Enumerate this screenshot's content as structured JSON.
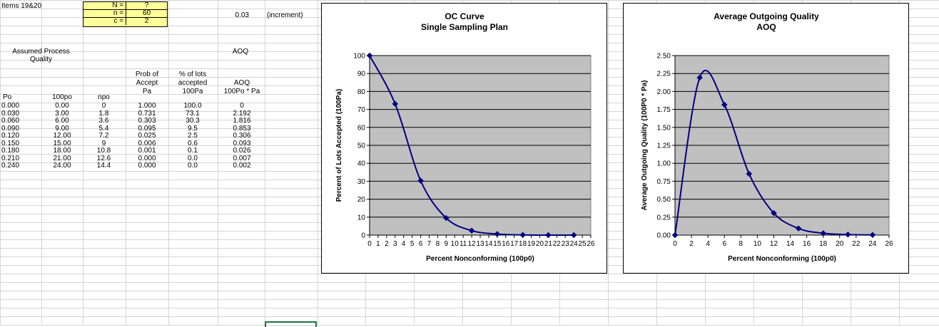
{
  "sheet": {
    "title_cell": "Items 19&20",
    "params": [
      {
        "label": "N =",
        "value": "?"
      },
      {
        "label": "n =",
        "value": "60"
      },
      {
        "label": "c =",
        "value": "2"
      }
    ],
    "increment_value": "0.03",
    "increment_label": "(increment)",
    "assumed_label_1": "Assumed Process",
    "assumed_label_2": "Quality",
    "aoq_top": "AOQ",
    "headers": {
      "prob_1": "Prob of",
      "prob_2": "Accept",
      "prob_3": "Pa",
      "pct_1": "% of lots",
      "pct_2": "accepted",
      "pct_3": "100Pa",
      "aoq_1": "AOQ",
      "aoq_2": "100Po * Pa",
      "p0": "Po",
      "p100": "100po",
      "np": "npo"
    },
    "rows": [
      [
        "0.000",
        "0.00",
        "0",
        "1.000",
        "100.0",
        "0"
      ],
      [
        "0.030",
        "3.00",
        "1.8",
        "0.731",
        "73.1",
        "2.192"
      ],
      [
        "0.060",
        "6.00",
        "3.6",
        "0.303",
        "30.3",
        "1.816"
      ],
      [
        "0.090",
        "9.00",
        "5.4",
        "0.095",
        "9.5",
        "0.853"
      ],
      [
        "0.120",
        "12.00",
        "7.2",
        "0.025",
        "2.5",
        "0.306"
      ],
      [
        "0.150",
        "15.00",
        "9",
        "0.006",
        "0.6",
        "0.093"
      ],
      [
        "0.180",
        "18.00",
        "10.8",
        "0.001",
        "0.1",
        "0.026"
      ],
      [
        "0.210",
        "21.00",
        "12.6",
        "0.000",
        "0.0",
        "0.007"
      ],
      [
        "0.240",
        "24.00",
        "14.4",
        "0.000",
        "0.0",
        "0.002"
      ]
    ]
  },
  "colors": {
    "plot_bg": "#c0c0c0",
    "series": "#000080",
    "grid_line": "#000000",
    "cell_line": "#d4d4d4",
    "param_bg": "#ffff99"
  },
  "chart_data": [
    {
      "type": "line",
      "title": "OC Curve",
      "subtitle": "Single Sampling Plan",
      "xlabel": "Percent Nonconforming (100p0)",
      "ylabel": "Percent of Lots Accepted (100Pa)",
      "x": [
        0,
        3,
        6,
        9,
        12,
        15,
        18,
        21,
        24
      ],
      "y": [
        100.0,
        73.1,
        30.3,
        9.5,
        2.5,
        0.6,
        0.1,
        0.0,
        0.0
      ],
      "xlim": [
        0,
        26
      ],
      "ylim": [
        0,
        100
      ],
      "xticks": [
        "0",
        "1",
        "2",
        "3",
        "4",
        "5",
        "6",
        "7",
        "8",
        "9",
        "10",
        "11",
        "12",
        "13",
        "14",
        "15",
        "16",
        "17",
        "18",
        "19",
        "20",
        "21",
        "22",
        "23",
        "24",
        "25",
        "26"
      ],
      "yticks": [
        "0",
        "10",
        "20",
        "30",
        "40",
        "50",
        "60",
        "70",
        "80",
        "90",
        "100"
      ],
      "grid": true,
      "smooth": true
    },
    {
      "type": "line",
      "title": "Average Outgoing Quality",
      "subtitle": "AOQ",
      "xlabel": "Percent Nonconforming (100p0)",
      "ylabel": "Average Outgoing Quality (100P0 * Pa)",
      "x": [
        0,
        3,
        6,
        9,
        12,
        15,
        18,
        21,
        24
      ],
      "y": [
        0,
        2.192,
        1.816,
        0.853,
        0.306,
        0.093,
        0.026,
        0.007,
        0.002
      ],
      "xlim": [
        0,
        26
      ],
      "ylim": [
        0,
        2.5
      ],
      "xticks": [
        "0",
        "2",
        "4",
        "6",
        "8",
        "10",
        "12",
        "14",
        "16",
        "18",
        "20",
        "22",
        "24",
        "26"
      ],
      "yticks": [
        "0.00",
        "0.25",
        "0.50",
        "0.75",
        "1.00",
        "1.25",
        "1.50",
        "1.75",
        "2.00",
        "2.25",
        "2.50"
      ],
      "grid": true,
      "smooth": true
    }
  ]
}
